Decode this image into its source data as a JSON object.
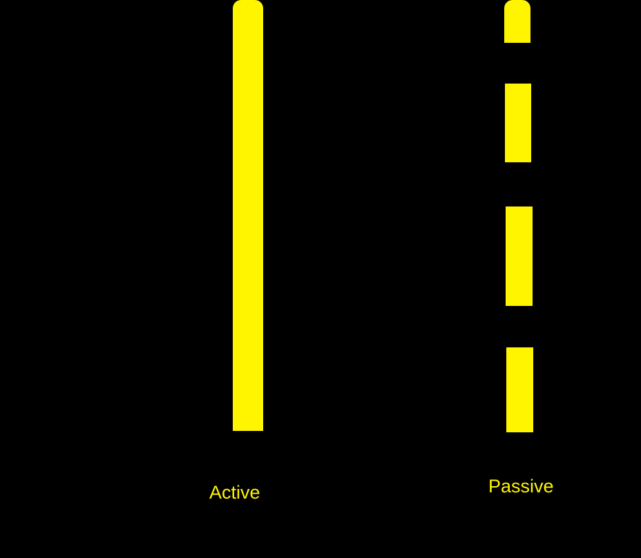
{
  "colors": {
    "background": "#000000",
    "accent": "#FFF500"
  },
  "lines": [
    {
      "kind": "solid",
      "label": "Active"
    },
    {
      "kind": "dashed",
      "label": "Passive"
    }
  ]
}
